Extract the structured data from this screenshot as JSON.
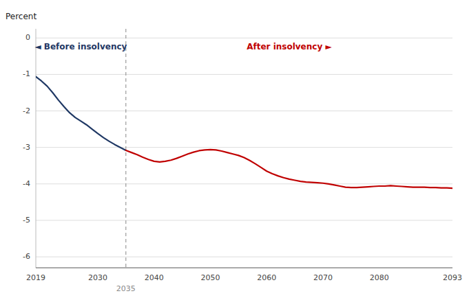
{
  "chart_data": {
    "type": "line",
    "y_label": "Percent",
    "xlim": [
      2019,
      2093
    ],
    "xticks": [
      2019,
      2030,
      2040,
      2050,
      2060,
      2070,
      2080,
      2093
    ],
    "ylim": [
      -6.3,
      0.25
    ],
    "yticks": [
      0,
      -1,
      -2,
      -3,
      -4,
      -5,
      -6
    ],
    "grid": true,
    "series": [
      {
        "color": "#1f3864",
        "x": [
          2019,
          2020,
          2021,
          2022,
          2023,
          2024,
          2025,
          2026,
          2027,
          2028,
          2029,
          2030,
          2031,
          2032,
          2033,
          2034,
          2035
        ],
        "values": [
          -1.06,
          -1.18,
          -1.32,
          -1.5,
          -1.7,
          -1.88,
          -2.05,
          -2.18,
          -2.28,
          -2.38,
          -2.5,
          -2.62,
          -2.73,
          -2.83,
          -2.92,
          -3.0,
          -3.08
        ]
      },
      {
        "color": "#c00000",
        "x": [
          2035,
          2036,
          2037,
          2038,
          2039,
          2040,
          2041,
          2042,
          2043,
          2044,
          2045,
          2046,
          2047,
          2048,
          2049,
          2050,
          2051,
          2052,
          2053,
          2054,
          2055,
          2056,
          2057,
          2058,
          2059,
          2060,
          2061,
          2062,
          2063,
          2064,
          2065,
          2066,
          2067,
          2068,
          2069,
          2070,
          2071,
          2072,
          2073,
          2074,
          2075,
          2076,
          2077,
          2078,
          2079,
          2080,
          2081,
          2082,
          2083,
          2084,
          2085,
          2086,
          2087,
          2088,
          2089,
          2090,
          2091,
          2092,
          2093
        ],
        "values": [
          -3.08,
          -3.14,
          -3.2,
          -3.27,
          -3.33,
          -3.38,
          -3.4,
          -3.38,
          -3.35,
          -3.3,
          -3.24,
          -3.18,
          -3.13,
          -3.09,
          -3.07,
          -3.06,
          -3.07,
          -3.1,
          -3.14,
          -3.18,
          -3.22,
          -3.28,
          -3.36,
          -3.45,
          -3.55,
          -3.65,
          -3.72,
          -3.78,
          -3.83,
          -3.87,
          -3.9,
          -3.93,
          -3.95,
          -3.96,
          -3.97,
          -3.98,
          -4.0,
          -4.03,
          -4.06,
          -4.09,
          -4.1,
          -4.1,
          -4.09,
          -4.08,
          -4.07,
          -4.06,
          -4.06,
          -4.05,
          -4.06,
          -4.07,
          -4.08,
          -4.09,
          -4.09,
          -4.09,
          -4.1,
          -4.1,
          -4.11,
          -4.11,
          -4.12
        ]
      }
    ],
    "reference_lines": [
      {
        "x": 2035,
        "label": "2035",
        "color": "#888888",
        "line_style": "dashed"
      }
    ],
    "annotations": [
      {
        "text": "◄ Before insolvency",
        "color": "#1f3864"
      },
      {
        "text": "After insolvency ►",
        "color": "#c00000"
      }
    ]
  }
}
